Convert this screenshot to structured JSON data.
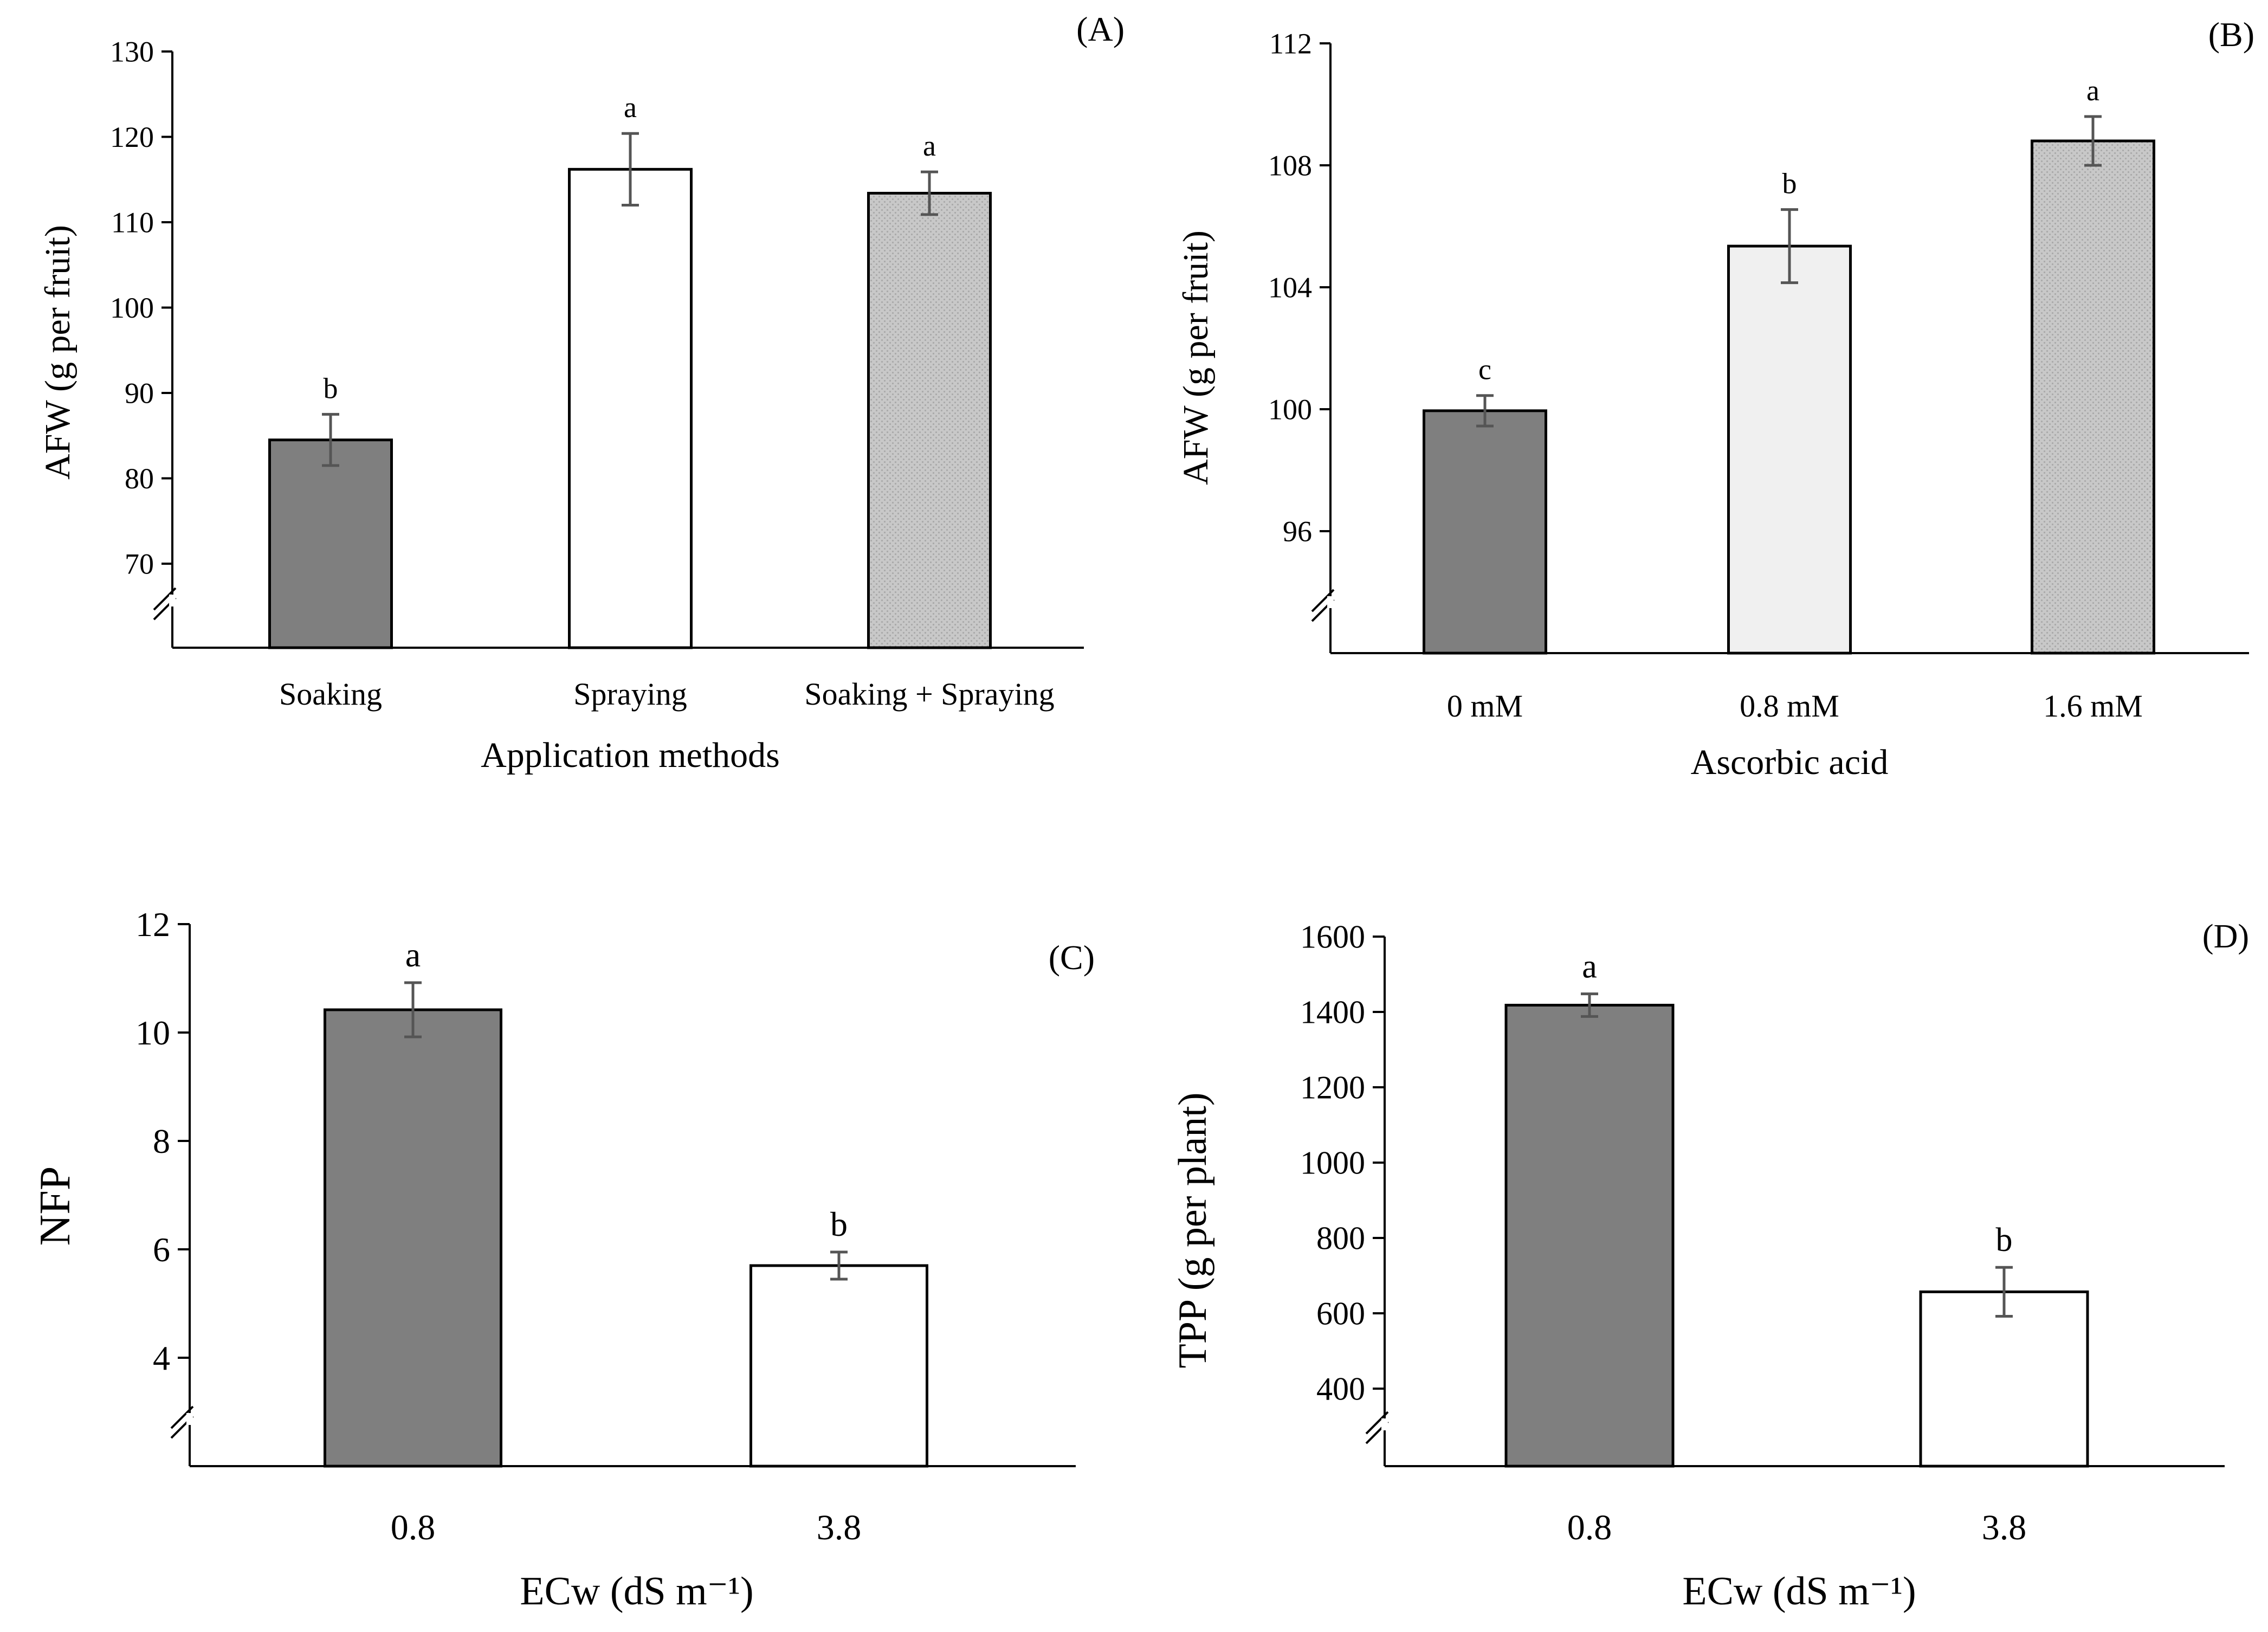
{
  "chart_data": [
    {
      "type": "bar",
      "panel_label": "(A)",
      "categories": [
        "Soaking",
        "Spraying",
        "Soaking + Spraying"
      ],
      "values": [
        84.5,
        116.2,
        113.4
      ],
      "errors": [
        3.0,
        4.2,
        2.5
      ],
      "significance": [
        "b",
        "a",
        "a"
      ],
      "bar_colors": [
        "#7f7f7f",
        "#ffffff",
        "#c8c8c8"
      ],
      "title": "",
      "xlabel": "Application methods",
      "ylabel": "AFW (g per fruit)",
      "yticks": [
        70,
        80,
        90,
        100,
        110,
        120,
        130
      ],
      "ylim": [
        60,
        130
      ],
      "axis_break": true,
      "grid": false
    },
    {
      "type": "bar",
      "panel_label": "(B)",
      "categories": [
        "0 mM",
        "0.8 mM",
        "1.6 mM"
      ],
      "values": [
        99.95,
        105.35,
        108.8
      ],
      "errors": [
        0.5,
        1.2,
        0.8
      ],
      "significance": [
        "c",
        "b",
        "a"
      ],
      "bar_colors": [
        "#7f7f7f",
        "#f0f0f0",
        "#c8c8c8"
      ],
      "title": "",
      "xlabel": "Ascorbic acid",
      "ylabel": "AFW (g per fruit)",
      "yticks": [
        96,
        100,
        104,
        108,
        112
      ],
      "ylim": [
        92,
        112
      ],
      "axis_break": true,
      "grid": false
    },
    {
      "type": "bar",
      "panel_label": "(C)",
      "categories": [
        "0.8",
        "3.8"
      ],
      "values": [
        10.42,
        5.7
      ],
      "errors": [
        0.5,
        0.25
      ],
      "significance": [
        "a",
        "b"
      ],
      "bar_colors": [
        "#7f7f7f",
        "#ffffff"
      ],
      "title": "",
      "xlabel": "ECw (dS m⁻¹)",
      "ylabel": "NFP",
      "yticks": [
        4,
        6,
        8,
        10,
        12
      ],
      "ylim": [
        2,
        12
      ],
      "axis_break": true,
      "grid": false
    },
    {
      "type": "bar",
      "panel_label": "(D)",
      "categories": [
        "0.8",
        "3.8"
      ],
      "values": [
        1418,
        657
      ],
      "errors": [
        30,
        65
      ],
      "significance": [
        "a",
        "b"
      ],
      "bar_colors": [
        "#7f7f7f",
        "#ffffff"
      ],
      "title": "",
      "xlabel": "ECw (dS m⁻¹)",
      "ylabel": "TPP (g per plant)",
      "yticks": [
        400,
        600,
        800,
        1000,
        1200,
        1400,
        1600
      ],
      "ylim": [
        200,
        1600
      ],
      "axis_break": true,
      "grid": false
    }
  ]
}
